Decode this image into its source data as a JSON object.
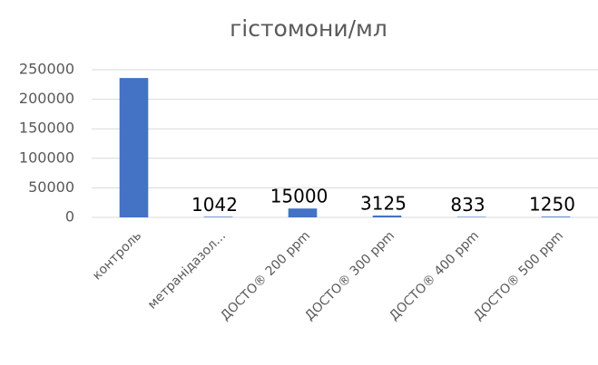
{
  "chart_data": {
    "type": "bar",
    "title": "гістомони/мл",
    "categories": [
      "контроль",
      "метранідазол...",
      "ДОСТО® 200 ppm",
      "ДОСТО® 300 ppm",
      "ДОСТО® 400 ppm",
      "ДОСТО® 500 ppm"
    ],
    "values": [
      236000,
      1042,
      15000,
      3125,
      833,
      1250
    ],
    "value_labels": [
      null,
      "1042",
      "15000",
      "3125",
      "833",
      "1250"
    ],
    "color": "#4472c4",
    "ylim": [
      0,
      250000
    ],
    "yticks": [
      0,
      50000,
      100000,
      150000,
      200000,
      250000
    ],
    "grid": true
  }
}
